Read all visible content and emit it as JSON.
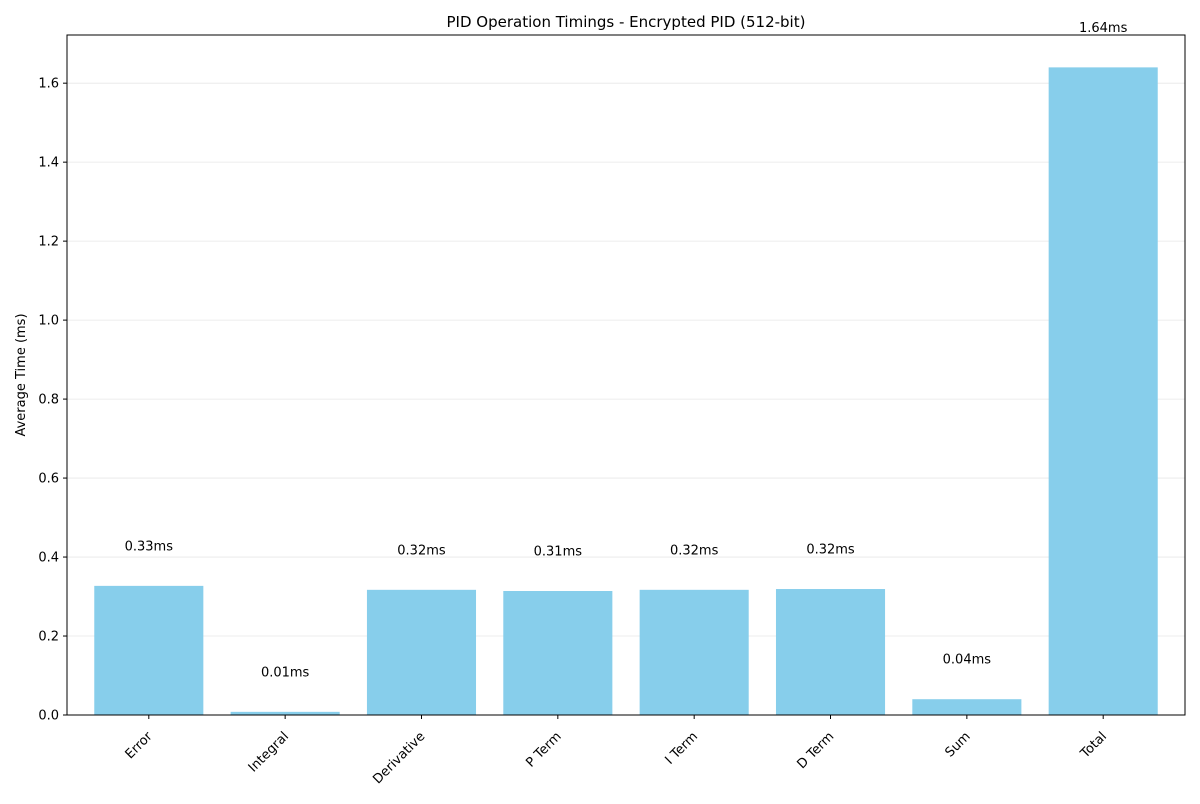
{
  "chart_data": {
    "type": "bar",
    "title": "PID Operation Timings - Encrypted PID (512-bit)",
    "xlabel": "",
    "ylabel": "Average Time (ms)",
    "ylim": [
      0,
      1.722
    ],
    "yticks": [
      0.0,
      0.2,
      0.4,
      0.6,
      0.8,
      1.0,
      1.2,
      1.4,
      1.6
    ],
    "ytick_labels": [
      "0.0",
      "0.2",
      "0.4",
      "0.6",
      "0.8",
      "1.0",
      "1.2",
      "1.4",
      "1.6"
    ],
    "grid": "horizontal",
    "bar_color": "#87CEEB",
    "categories": [
      "Error",
      "Integral",
      "Derivative",
      "P Term",
      "I Term",
      "D Term",
      "Sum",
      "Total"
    ],
    "values": [
      0.327,
      0.008,
      0.317,
      0.314,
      0.317,
      0.319,
      0.04,
      1.64
    ],
    "data_labels": [
      "0.33ms",
      "0.01ms",
      "0.32ms",
      "0.31ms",
      "0.32ms",
      "0.32ms",
      "0.04ms",
      "1.64ms"
    ],
    "label_offset": 0.1
  }
}
